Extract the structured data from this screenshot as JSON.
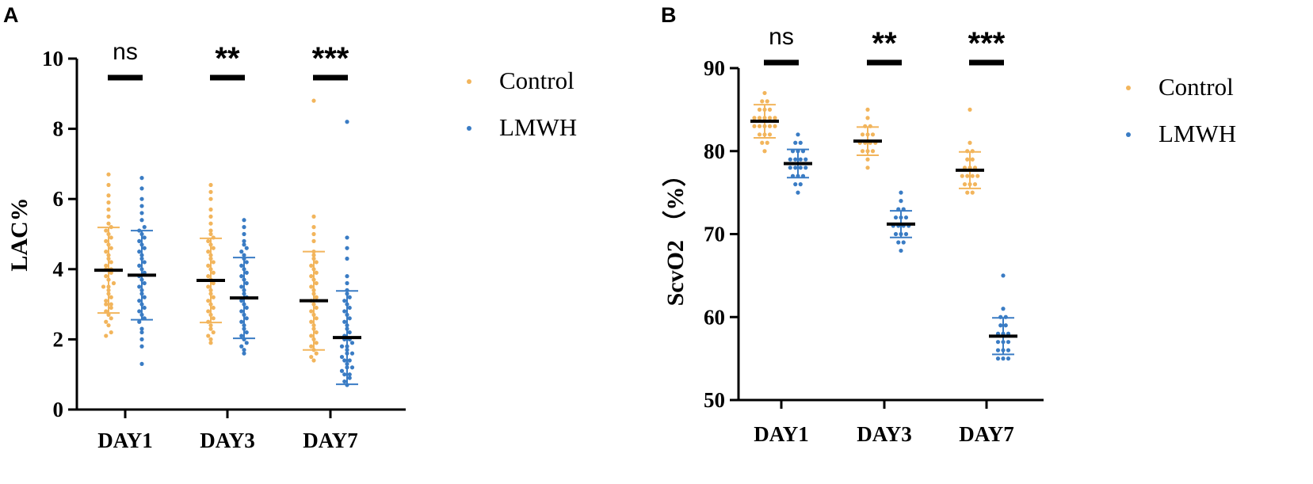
{
  "panels": [
    {
      "letter": "A",
      "legend_position": "right",
      "chart_data": {
        "type": "scatter",
        "title": "",
        "xlabel": "",
        "ylabel": "LAC%",
        "categories": [
          "DAY1",
          "DAY3",
          "DAY7"
        ],
        "ylim": [
          0,
          10
        ],
        "yticks": [
          0,
          2,
          4,
          6,
          8,
          10
        ],
        "grid": false,
        "significance": [
          "ns",
          "**",
          "***"
        ],
        "series": [
          {
            "name": "Control",
            "color": "#F2B55C",
            "mean": [
              3.97,
              3.68,
              3.1
            ],
            "sd": [
              1.22,
              1.2,
              1.4
            ],
            "values": [
              [
                2.1,
                2.2,
                2.4,
                2.5,
                2.6,
                2.7,
                2.8,
                2.9,
                3.0,
                3.0,
                3.1,
                3.2,
                3.3,
                3.4,
                3.5,
                3.5,
                3.6,
                3.7,
                3.8,
                3.9,
                4.0,
                4.0,
                4.1,
                4.2,
                4.3,
                4.4,
                4.5,
                4.6,
                4.7,
                4.8,
                4.9,
                5.0,
                5.1,
                5.2,
                5.3,
                5.5,
                5.7,
                5.9,
                6.1,
                6.4,
                6.7
              ],
              [
                1.9,
                2.0,
                2.1,
                2.2,
                2.3,
                2.4,
                2.5,
                2.6,
                2.7,
                2.8,
                2.9,
                3.0,
                3.1,
                3.2,
                3.3,
                3.4,
                3.5,
                3.6,
                3.7,
                3.8,
                3.9,
                4.0,
                4.1,
                4.2,
                4.3,
                4.4,
                4.5,
                4.6,
                4.7,
                4.8,
                4.9,
                5.0,
                5.1,
                5.3,
                5.5,
                5.7,
                6.0,
                6.2,
                6.4
              ],
              [
                1.4,
                1.5,
                1.6,
                1.7,
                1.8,
                1.9,
                2.0,
                2.1,
                2.2,
                2.3,
                2.4,
                2.5,
                2.6,
                2.7,
                2.8,
                2.9,
                3.0,
                3.1,
                3.2,
                3.3,
                3.4,
                3.5,
                3.6,
                3.7,
                3.8,
                3.9,
                4.0,
                4.1,
                4.2,
                4.3,
                4.4,
                4.5,
                4.8,
                5.0,
                5.2,
                5.5,
                8.8
              ]
            ]
          },
          {
            "name": "LMWH",
            "color": "#3A7CC4",
            "mean": [
              3.83,
              3.18,
              2.05
            ],
            "sd": [
              1.27,
              1.15,
              1.33
            ],
            "values": [
              [
                1.3,
                1.8,
                2.0,
                2.2,
                2.3,
                2.5,
                2.6,
                2.7,
                2.8,
                2.9,
                3.0,
                3.1,
                3.2,
                3.3,
                3.4,
                3.5,
                3.6,
                3.7,
                3.8,
                3.9,
                4.0,
                4.1,
                4.2,
                4.3,
                4.4,
                4.5,
                4.6,
                4.7,
                4.8,
                4.9,
                5.0,
                5.1,
                5.2,
                5.4,
                5.6,
                5.8,
                6.0,
                6.3,
                6.6
              ],
              [
                1.6,
                1.7,
                1.8,
                1.9,
                2.0,
                2.1,
                2.2,
                2.3,
                2.4,
                2.5,
                2.6,
                2.7,
                2.8,
                2.9,
                3.0,
                3.1,
                3.2,
                3.3,
                3.4,
                3.5,
                3.6,
                3.7,
                3.8,
                3.9,
                4.0,
                4.1,
                4.2,
                4.3,
                4.4,
                4.5,
                4.6,
                4.7,
                4.8,
                5.0,
                5.2,
                5.4
              ],
              [
                0.7,
                0.8,
                0.9,
                1.0,
                1.0,
                1.1,
                1.2,
                1.2,
                1.3,
                1.4,
                1.4,
                1.5,
                1.6,
                1.6,
                1.7,
                1.8,
                1.8,
                1.9,
                2.0,
                2.0,
                2.1,
                2.2,
                2.3,
                2.4,
                2.5,
                2.6,
                2.7,
                2.8,
                2.9,
                3.0,
                3.1,
                3.2,
                3.3,
                3.4,
                3.6,
                3.8,
                4.3,
                4.6,
                4.9,
                8.2
              ]
            ]
          }
        ]
      }
    },
    {
      "letter": "B",
      "legend_position": "right",
      "chart_data": {
        "type": "scatter",
        "title": "",
        "xlabel": "",
        "ylabel": "ScvO2 （%）",
        "categories": [
          "DAY1",
          "DAY3",
          "DAY7"
        ],
        "ylim": [
          50,
          90
        ],
        "yticks": [
          50,
          60,
          70,
          80,
          90
        ],
        "grid": false,
        "significance": [
          "ns",
          "**",
          "***"
        ],
        "series": [
          {
            "name": "Control",
            "color": "#F2B55C",
            "mean": [
              83.6,
              81.2,
              77.7
            ],
            "sd": [
              2.0,
              1.7,
              2.2
            ],
            "values": [
              [
                80,
                81,
                81,
                82,
                82,
                82,
                83,
                83,
                83,
                83,
                83,
                84,
                84,
                84,
                84,
                84,
                85,
                85,
                85,
                86,
                86,
                87
              ],
              [
                78,
                79,
                80,
                80,
                80,
                81,
                81,
                81,
                81,
                82,
                82,
                82,
                83,
                83,
                84,
                85
              ],
              [
                75,
                75,
                76,
                76,
                76,
                77,
                77,
                77,
                77,
                78,
                78,
                78,
                79,
                79,
                80,
                80,
                81,
                85
              ]
            ]
          },
          {
            "name": "LMWH",
            "color": "#3A7CC4",
            "mean": [
              78.5,
              71.2,
              57.7
            ],
            "sd": [
              1.7,
              1.6,
              2.2
            ],
            "values": [
              [
                75,
                76,
                76,
                77,
                77,
                77,
                78,
                78,
                78,
                78,
                79,
                79,
                79,
                79,
                80,
                80,
                80,
                81,
                81,
                82
              ],
              [
                68,
                69,
                69,
                70,
                70,
                70,
                71,
                71,
                71,
                71,
                72,
                72,
                72,
                73,
                73,
                74,
                75
              ],
              [
                55,
                55,
                55,
                56,
                56,
                56,
                57,
                57,
                57,
                58,
                58,
                58,
                59,
                59,
                60,
                60,
                61,
                65
              ]
            ]
          }
        ]
      }
    }
  ]
}
